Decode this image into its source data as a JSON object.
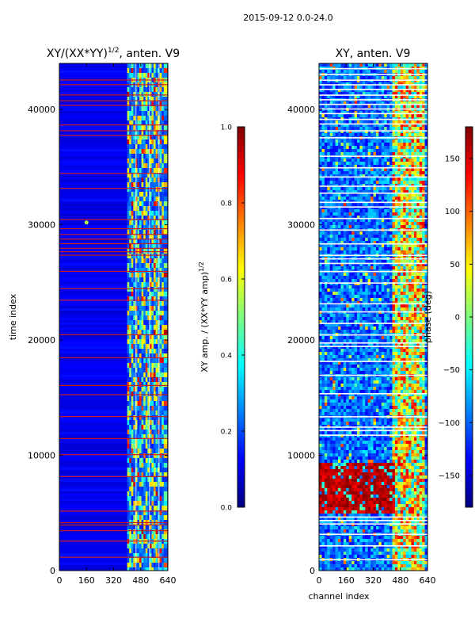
{
  "figure_title": "2015-09-12 0.0-24.0",
  "chart_data": [
    {
      "type": "heatmap",
      "title_main": "XY/(XX*YY)",
      "title_sup": "1/2",
      "title_tail": ", anten. V9",
      "ylabel": "time index",
      "xlabel": "",
      "xlim": [
        0,
        640
      ],
      "ylim": [
        0,
        44000
      ],
      "xticks": [
        0,
        160,
        320,
        480,
        640
      ],
      "xtick_labels": [
        "0",
        "160",
        "320",
        "480",
        "640"
      ],
      "yticks": [
        0,
        10000,
        20000,
        30000,
        40000
      ],
      "ytick_labels": [
        "0",
        "10000",
        "20000",
        "30000",
        "40000"
      ],
      "colormap": "jet",
      "colorbar": {
        "label_main": "XY amp. / (XX*YY amp)",
        "label_sup": "1/2",
        "range": [
          0.0,
          1.0
        ],
        "ticks": [
          0.0,
          0.2,
          0.4,
          0.6,
          0.8,
          1.0
        ],
        "tick_labels": [
          "0.0",
          "0.2",
          "0.4",
          "0.6",
          "0.8",
          "1.0"
        ]
      },
      "flagged_rows_time_index": [
        1200,
        2600,
        3500,
        4000,
        4200,
        5200,
        8200,
        10100,
        11500,
        13400,
        15300,
        16100,
        18500,
        20500,
        23500,
        24500,
        26000,
        27400,
        27700,
        28000,
        28400,
        28800,
        29200,
        29700,
        30500,
        33200,
        34500,
        37800,
        38200,
        38700,
        40400,
        40800,
        41300,
        42200,
        42600
      ]
    },
    {
      "type": "heatmap",
      "title": "XY, anten. V9",
      "ylabel": "",
      "xlabel": "channel index",
      "xlim": [
        0,
        640
      ],
      "ylim": [
        0,
        44000
      ],
      "xticks": [
        0,
        160,
        320,
        480,
        640
      ],
      "xtick_labels": [
        "0",
        "160",
        "320",
        "480",
        "640"
      ],
      "yticks": [
        0,
        10000,
        20000,
        30000,
        40000
      ],
      "ytick_labels": [
        "0",
        "10000",
        "20000",
        "30000",
        "40000"
      ],
      "colormap": "jet",
      "colorbar": {
        "label": "phase (deg)",
        "range": [
          -180,
          180
        ],
        "ticks": [
          -150,
          -100,
          -50,
          0,
          50,
          100,
          150
        ],
        "tick_labels": [
          "−150",
          "−100",
          "−50",
          "0",
          "50",
          "100",
          "150"
        ]
      },
      "flagged_rows_time_index": [
        1000,
        2200,
        3200,
        4100,
        4400,
        4700,
        11800,
        12200,
        12500,
        13400,
        15400,
        17000,
        18200,
        19500,
        19800,
        20500,
        21500,
        22500,
        23200,
        25000,
        26000,
        26700,
        27100,
        27400,
        28400,
        29600,
        30600,
        31600,
        32000,
        32800,
        33400,
        34200,
        35000,
        36000,
        37600,
        38200,
        38800,
        39200,
        39700,
        40100,
        40500,
        40900,
        41300,
        41800,
        42200,
        42600,
        43100,
        43600
      ]
    }
  ]
}
